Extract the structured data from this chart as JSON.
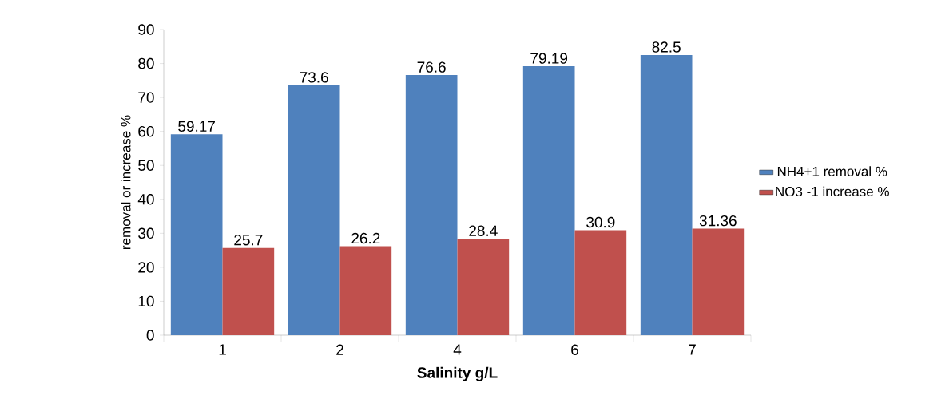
{
  "chart_data": {
    "type": "bar",
    "xlabel": "Salinity g/L",
    "ylabel": "removal or increase %",
    "categories": [
      "1",
      "2",
      "4",
      "6",
      "7"
    ],
    "series": [
      {
        "name": "NH4+1 removal %",
        "color": "#4f81bd",
        "values": [
          59.17,
          73.6,
          76.6,
          79.19,
          82.5
        ]
      },
      {
        "name": "NO3 -1 increase %",
        "color": "#c0504d",
        "values": [
          25.7,
          26.2,
          28.4,
          30.9,
          31.36
        ]
      }
    ],
    "ylim": [
      0,
      90
    ],
    "yticks": [
      0,
      10,
      20,
      30,
      40,
      50,
      60,
      70,
      80,
      90
    ],
    "data_labels": true,
    "legend": "right",
    "grid": false
  }
}
